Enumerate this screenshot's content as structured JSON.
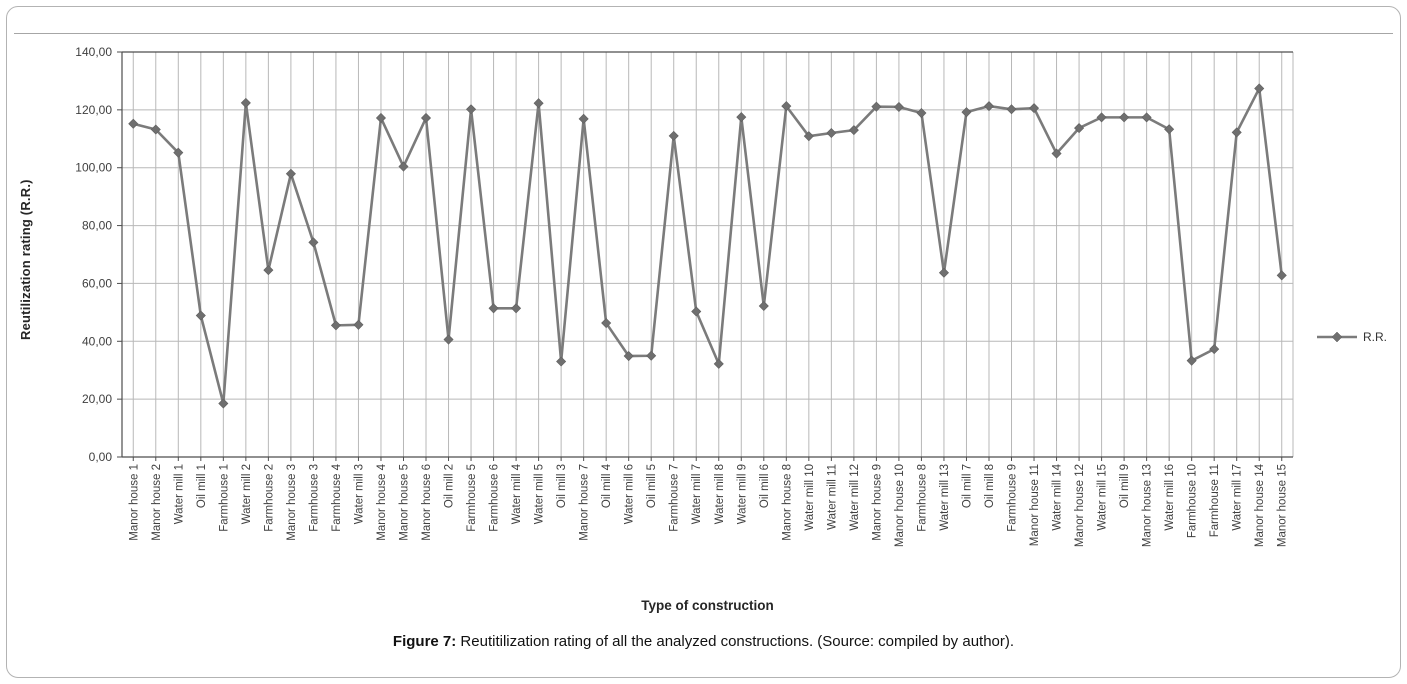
{
  "figure": {
    "caption_label": "Figure 7:",
    "caption_text": " Reutitilization rating of all the analyzed constructions. (Source: compiled by author)."
  },
  "colors": {
    "series_line": "#7b7b7b",
    "marker_fill": "#6f6f6f",
    "gridline": "#b8b8b8",
    "axis_line": "#4d4d4d",
    "tick_text": "#3f3f3f",
    "frame_border": "#b3b3b3"
  },
  "chart_data": {
    "type": "line",
    "title": "",
    "xlabel": "Type of construction",
    "ylabel": "Reutilization rating (R.R.)",
    "legend_position": "right",
    "grid": true,
    "ylim": [
      0,
      140
    ],
    "ytick_step": 20,
    "ytick_labels": [
      "0,00",
      "20,00",
      "40,00",
      "60,00",
      "80,00",
      "100,00",
      "120,00",
      "140,00"
    ],
    "marker": "diamond",
    "categories": [
      "Manor house 1",
      "Manor house 2",
      "Water mill 1",
      "Oil mill 1",
      "Farmhouse 1",
      "Water mill 2",
      "Farmhouse 2",
      "Manor house 3",
      "Farmhouse 3",
      "Farmhouse 4",
      "Water mill 3",
      "Manor house 4",
      "Manor house 5",
      "Manor house 6",
      "Oil mill 2",
      "Farmhouse 5",
      "Farmhouse 6",
      "Water mill 4",
      "Water mill 5",
      "Oil mill 3",
      "Manor house 7",
      "Oil mill 4",
      "Water mill 6",
      "Oil mill 5",
      "Farmhouse 7",
      "Water mill 7",
      "Water mill 8",
      "Water mill 9",
      "Oil mill 6",
      "Manor house 8",
      "Water mill 10",
      "Water mill 11",
      "Water mill 12",
      "Manor house 9",
      "Manor house 10",
      "Farmhouse 8",
      "Water mill 13",
      "Oil mill 7",
      "Oil mill 8",
      "Farmhouse 9",
      "Manor house 11",
      "Water mill 14",
      "Manor house 12",
      "Water mill 15",
      "Oil mill 9",
      "Manor house 13",
      "Water mill 16",
      "Farmhouse 10",
      "Farmhouse 11",
      "Water mill 17",
      "Manor house 14",
      "Manor house 15"
    ],
    "series": [
      {
        "name": "R.R.",
        "values": [
          115.2,
          113.2,
          105.2,
          48.9,
          18.5,
          122.4,
          64.6,
          97.9,
          74.2,
          45.5,
          45.7,
          117.2,
          100.4,
          117.2,
          40.6,
          120.2,
          51.4,
          51.4,
          122.3,
          33.0,
          116.9,
          46.3,
          34.9,
          35.0,
          111.0,
          50.3,
          32.2,
          117.5,
          52.2,
          121.3,
          110.9,
          112.0,
          113.0,
          121.1,
          121.0,
          118.9,
          63.7,
          119.2,
          121.3,
          120.2,
          120.6,
          104.9,
          113.7,
          117.4,
          117.4,
          117.4,
          113.3,
          33.3,
          37.3,
          112.2,
          127.4,
          62.8
        ]
      }
    ]
  }
}
